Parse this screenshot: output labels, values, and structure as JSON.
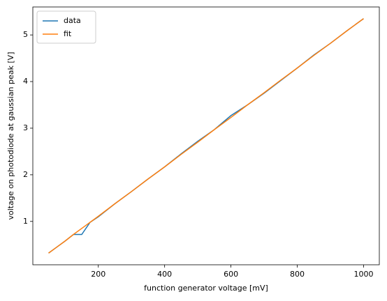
{
  "chart_data": {
    "type": "line",
    "xlabel": "function generator voltage [mV]",
    "ylabel": "voltage on photodiode at gaussian peak [V]",
    "x": [
      50,
      75,
      100,
      125,
      150,
      175,
      200,
      250,
      300,
      350,
      400,
      450,
      500,
      550,
      600,
      650,
      700,
      750,
      800,
      850,
      900,
      950,
      1000
    ],
    "series": [
      {
        "name": "data",
        "color": "#1f77b4",
        "values": [
          0.32,
          0.45,
          0.58,
          0.72,
          0.72,
          0.98,
          1.1,
          1.38,
          1.64,
          1.91,
          2.17,
          2.45,
          2.72,
          2.97,
          3.27,
          3.5,
          3.75,
          4.02,
          4.29,
          4.57,
          4.82,
          5.09,
          5.35
        ]
      },
      {
        "name": "fit",
        "color": "#ff7f0e",
        "values": [
          0.32,
          0.45,
          0.58,
          0.72,
          0.85,
          0.98,
          1.11,
          1.38,
          1.64,
          1.91,
          2.17,
          2.44,
          2.7,
          2.97,
          3.23,
          3.5,
          3.76,
          4.03,
          4.29,
          4.56,
          4.82,
          5.09,
          5.35
        ]
      }
    ],
    "xlim": [
      2.5,
      1047.5
    ],
    "xticks": [
      200,
      400,
      600,
      800,
      1000
    ],
    "ylim": [
      0.07,
      5.6
    ],
    "yticks": [
      1,
      2,
      3,
      4,
      5
    ],
    "grid": false,
    "legend": "upper left"
  }
}
